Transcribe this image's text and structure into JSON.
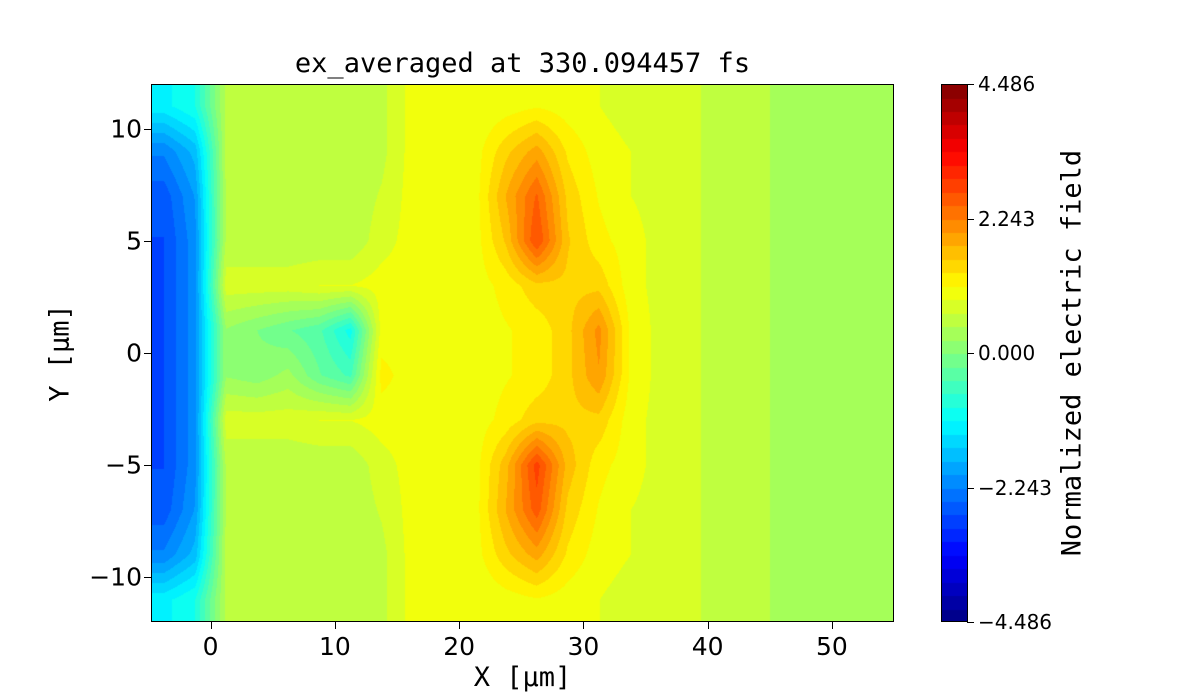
{
  "chart_data": {
    "type": "heatmap",
    "title": "ex_averaged at 330.094457 fs",
    "xlabel": "X [μm]",
    "ylabel": "Y [μm]",
    "xlim": [
      -4.8,
      55
    ],
    "ylim": [
      -12,
      12
    ],
    "xticks": [
      0,
      10,
      20,
      30,
      40,
      50
    ],
    "xtick_labels": [
      "0",
      "10",
      "20",
      "30",
      "40",
      "50"
    ],
    "yticks": [
      10,
      5,
      0,
      -5,
      -10
    ],
    "ytick_labels": [
      "10",
      "5",
      "0",
      "−5",
      "−10"
    ],
    "colormap": "jet",
    "color_levels": 40,
    "colorbar": {
      "label": "Normalized electric field",
      "range": [
        -4.486,
        4.486
      ],
      "ticks": [
        4.486,
        2.243,
        0.0,
        -2.243,
        -4.486
      ],
      "tick_labels": [
        "4.486",
        "2.243",
        "0.000",
        "−2.243",
        "−4.486"
      ]
    },
    "grid_x": [
      -3.75,
      -1.25,
      1.25,
      3.75,
      6.25,
      8.75,
      11.25,
      13.75,
      16.25,
      18.75,
      21.25,
      23.75,
      26.25,
      28.75,
      31.25,
      33.75,
      36.25,
      38.75,
      41.25,
      43.75,
      46.25,
      48.75,
      51.25,
      53.75
    ],
    "grid_y": [
      11,
      9,
      7,
      5,
      3,
      1,
      -1,
      -3,
      -5,
      -7,
      -9,
      -11
    ],
    "values": [
      [
        -1.2,
        -0.9,
        0.5,
        0.5,
        0.5,
        0.5,
        0.5,
        0.6,
        1.0,
        1.0,
        0.9,
        1.0,
        1.1,
        1.0,
        0.9,
        0.8,
        0.7,
        0.7,
        0.6,
        0.5,
        0.4,
        0.25,
        0.25,
        0.25
      ],
      [
        -2.2,
        -1.7,
        0.5,
        0.5,
        0.5,
        0.5,
        0.5,
        0.6,
        1.0,
        1.0,
        1.0,
        1.5,
        1.9,
        1.3,
        1.0,
        0.9,
        0.8,
        0.7,
        0.6,
        0.5,
        0.4,
        0.25,
        0.25,
        0.25
      ],
      [
        -2.6,
        -2.0,
        0.5,
        0.5,
        0.5,
        0.5,
        0.5,
        0.7,
        1.0,
        1.0,
        1.0,
        1.8,
        2.5,
        1.5,
        1.1,
        0.9,
        0.8,
        0.7,
        0.6,
        0.5,
        0.4,
        0.25,
        0.25,
        0.25
      ],
      [
        -2.7,
        -2.1,
        0.5,
        0.5,
        0.5,
        0.5,
        0.5,
        0.8,
        1.0,
        1.0,
        1.0,
        1.6,
        2.7,
        1.6,
        1.2,
        1.0,
        0.8,
        0.7,
        0.6,
        0.5,
        0.4,
        0.25,
        0.25,
        0.25
      ],
      [
        -2.7,
        -2.1,
        0.8,
        0.8,
        0.8,
        0.9,
        0.9,
        1.0,
        1.0,
        1.0,
        1.0,
        1.2,
        1.5,
        1.5,
        1.5,
        1.0,
        0.8,
        0.7,
        0.6,
        0.5,
        0.4,
        0.25,
        0.25,
        0.25
      ],
      [
        -2.7,
        -2.1,
        0.2,
        0.0,
        -0.2,
        -0.4,
        -1.0,
        1.0,
        1.0,
        1.0,
        1.0,
        1.1,
        1.2,
        1.5,
        2.1,
        1.1,
        0.8,
        0.7,
        0.6,
        0.5,
        0.4,
        0.25,
        0.25,
        0.25
      ],
      [
        -2.7,
        -2.1,
        0.2,
        0.1,
        0.3,
        -0.2,
        -0.5,
        1.2,
        1.0,
        1.0,
        1.0,
        1.1,
        1.2,
        1.5,
        2.0,
        1.1,
        0.8,
        0.7,
        0.6,
        0.5,
        0.4,
        0.25,
        0.25,
        0.25
      ],
      [
        -2.7,
        -2.1,
        0.8,
        0.8,
        0.8,
        0.9,
        0.9,
        1.0,
        1.0,
        1.0,
        1.0,
        1.2,
        1.5,
        1.5,
        1.5,
        1.0,
        0.8,
        0.7,
        0.6,
        0.5,
        0.4,
        0.25,
        0.25,
        0.25
      ],
      [
        -2.7,
        -2.1,
        0.5,
        0.5,
        0.5,
        0.5,
        0.5,
        0.8,
        1.0,
        1.0,
        1.0,
        1.7,
        2.8,
        1.7,
        1.2,
        1.0,
        0.8,
        0.7,
        0.6,
        0.5,
        0.4,
        0.25,
        0.25,
        0.25
      ],
      [
        -2.6,
        -2.0,
        0.5,
        0.5,
        0.5,
        0.5,
        0.5,
        0.7,
        1.0,
        1.0,
        1.0,
        1.8,
        2.6,
        1.5,
        1.1,
        0.9,
        0.8,
        0.7,
        0.6,
        0.5,
        0.4,
        0.25,
        0.25,
        0.25
      ],
      [
        -2.2,
        -1.7,
        0.5,
        0.5,
        0.5,
        0.5,
        0.5,
        0.6,
        1.0,
        1.0,
        1.0,
        1.5,
        1.9,
        1.3,
        1.0,
        0.9,
        0.8,
        0.7,
        0.6,
        0.5,
        0.4,
        0.25,
        0.25,
        0.25
      ],
      [
        -1.2,
        -0.9,
        0.5,
        0.5,
        0.5,
        0.5,
        0.5,
        0.6,
        1.0,
        1.0,
        0.9,
        1.0,
        1.1,
        1.0,
        0.9,
        0.8,
        0.7,
        0.7,
        0.6,
        0.5,
        0.4,
        0.25,
        0.25,
        0.25
      ]
    ]
  }
}
